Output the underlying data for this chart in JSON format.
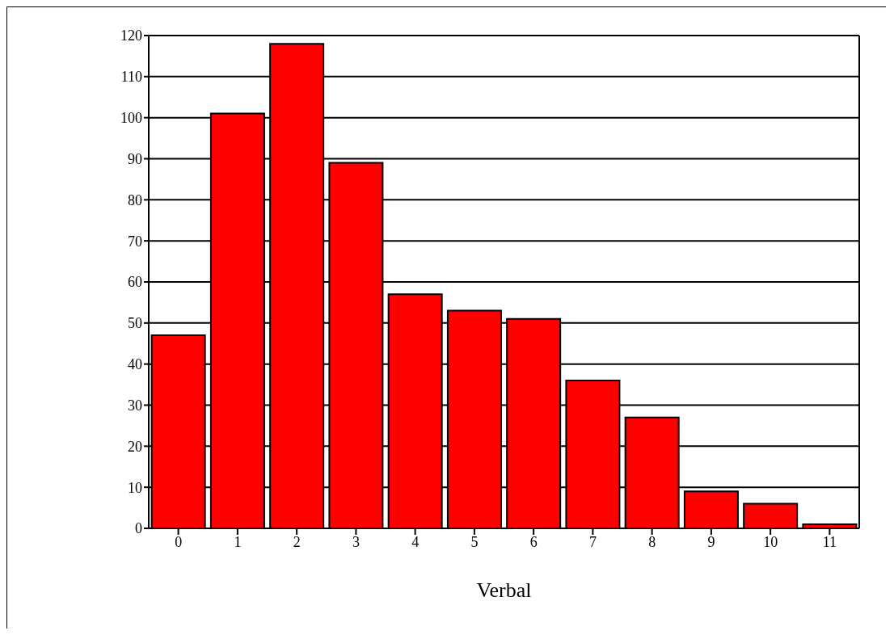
{
  "chart_data": {
    "type": "bar",
    "xlabel": "Verbal",
    "categories": [
      "0",
      "1",
      "2",
      "3",
      "4",
      "5",
      "6",
      "7",
      "8",
      "9",
      "10",
      "11"
    ],
    "values": [
      47,
      101,
      118,
      89,
      57,
      53,
      51,
      36,
      27,
      9,
      6,
      1
    ],
    "color": "#ff0000",
    "ylim": [
      0,
      120
    ],
    "yticks": [
      0,
      10,
      20,
      30,
      40,
      50,
      60,
      70,
      80,
      90,
      100,
      110,
      120
    ],
    "grid": "y"
  }
}
